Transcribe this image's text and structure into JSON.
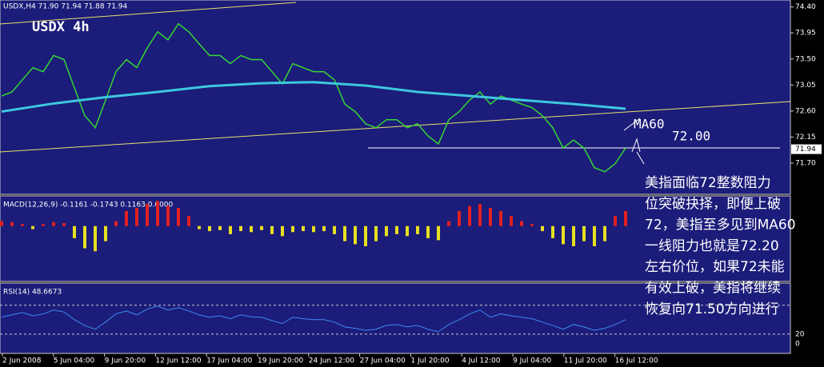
{
  "chart_data": {
    "type": "line",
    "symbol_info": "USDX,H4 71.90 71.94 71.88 71.94",
    "title": "USDX 4h",
    "annotations": [
      "MA60",
      "72.00"
    ],
    "comment": [
      "美指面临72整数阻力",
      "位突破抉择，即便上破",
      "72，美指至多见到MA60",
      "一线阻力也就是72.20",
      "左右价位，如果72未能",
      "有效上破，美指将继续",
      "恢复向71.50方向进行"
    ],
    "color": "#34d834",
    "values": [
      72.86,
      72.93,
      73.14,
      73.35,
      73.28,
      73.56,
      73.49,
      73.0,
      72.52,
      72.31,
      72.79,
      73.28,
      73.49,
      73.35,
      73.69,
      73.97,
      73.83,
      74.11,
      73.97,
      73.76,
      73.56,
      73.56,
      73.42,
      73.56,
      73.49,
      73.49,
      73.28,
      73.07,
      73.42,
      73.35,
      73.28,
      73.28,
      73.14,
      72.72,
      72.59,
      72.38,
      72.31,
      72.45,
      72.45,
      72.31,
      72.38,
      72.17,
      72.03,
      72.45,
      72.59,
      72.79,
      72.93,
      72.72,
      72.86,
      72.79,
      72.72,
      72.66,
      72.52,
      72.31,
      71.96,
      72.1,
      71.96,
      71.62,
      71.55,
      71.69,
      71.96
    ],
    "ma_color": "#3cc8e0",
    "ma_values": [
      72.59,
      72.73,
      72.84,
      72.93,
      73.03,
      73.08,
      73.1,
      73.04,
      72.93,
      72.86,
      72.79,
      72.72,
      72.64
    ],
    "last_price": 71.94,
    "ylim": [
      71.16,
      74.52
    ],
    "yticks": [
      {
        "value": 74.4,
        "label": "74.40"
      },
      {
        "value": 73.95,
        "label": "73.95"
      },
      {
        "value": 73.5,
        "label": "73.50"
      },
      {
        "value": 73.05,
        "label": "73.05"
      },
      {
        "value": 72.6,
        "label": "72.60"
      },
      {
        "value": 72.15,
        "label": "72.15"
      },
      {
        "value": 71.7,
        "label": "71.70"
      }
    ],
    "x_labels": [
      "2 Jun 2008",
      "5 Jun 04:00",
      "9 Jun 20:00",
      "12 Jun 12:00",
      "17 Jun 04:00",
      "19 Jun 20:00",
      "24 Jun 12:00",
      "27 Jun 04:00",
      "1 Jul 20:00",
      "4 Jul 12:00",
      "9 Jul 04:00",
      "11 Jul 20:00",
      "16 Jul 12:00"
    ],
    "macd": {
      "label": "MACD(12,26,9) -0.1161 -0.1743 0.1163 0.0000",
      "ylim": [
        -0.55,
        0.3
      ],
      "pos_color": "#e02020",
      "neg_color": "#e8e020",
      "values": [
        0.05,
        0.04,
        0.02,
        -0.03,
        0.02,
        0.04,
        0.03,
        -0.12,
        -0.22,
        -0.25,
        -0.15,
        0.05,
        0.15,
        0.18,
        0.22,
        0.25,
        0.2,
        0.18,
        0.1,
        -0.03,
        -0.05,
        -0.04,
        -0.08,
        -0.05,
        -0.06,
        -0.04,
        -0.08,
        -0.1,
        -0.06,
        -0.05,
        -0.06,
        -0.05,
        -0.08,
        -0.15,
        -0.18,
        -0.2,
        -0.15,
        -0.1,
        -0.08,
        -0.1,
        -0.08,
        -0.12,
        -0.14,
        0.05,
        0.15,
        0.2,
        0.22,
        0.18,
        0.15,
        0.1,
        0.05,
        0.02,
        -0.05,
        -0.12,
        -0.18,
        -0.2,
        -0.15,
        -0.2,
        -0.15,
        0.1,
        0.15
      ]
    },
    "rsi": {
      "label": "RSI(14) 48.6673",
      "ylim": [
        -20,
        126
      ],
      "yticks": [
        20,
        0
      ],
      "levels": [
        20,
        80
      ],
      "color": "#3c8cf0",
      "values": [
        55,
        60,
        65,
        58,
        62,
        70,
        66,
        50,
        38,
        30,
        45,
        62,
        68,
        60,
        72,
        78,
        70,
        75,
        68,
        60,
        55,
        58,
        52,
        60,
        56,
        55,
        48,
        42,
        55,
        52,
        50,
        50,
        45,
        35,
        32,
        28,
        30,
        38,
        40,
        35,
        38,
        30,
        25,
        40,
        50,
        62,
        70,
        55,
        62,
        58,
        55,
        52,
        45,
        38,
        30,
        40,
        35,
        28,
        32,
        40,
        50
      ]
    }
  }
}
